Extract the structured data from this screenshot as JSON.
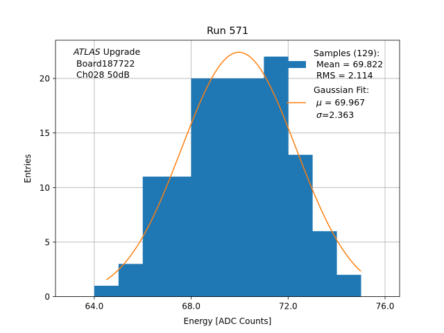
{
  "chart_data": {
    "type": "bar",
    "title": "Run 571",
    "xlabel": "Energy [ADC Counts]",
    "ylabel": "Entries",
    "xlim": [
      62.4,
      76.6
    ],
    "ylim": [
      0,
      23.5
    ],
    "grid": true,
    "x_ticks": [
      {
        "value": 64,
        "label": "64.0"
      },
      {
        "value": 68,
        "label": "68.0"
      },
      {
        "value": 72,
        "label": "72.0"
      },
      {
        "value": 76,
        "label": "76.0"
      }
    ],
    "y_ticks": [
      {
        "value": 0,
        "label": "0"
      },
      {
        "value": 5,
        "label": "5"
      },
      {
        "value": 10,
        "label": "10"
      },
      {
        "value": 15,
        "label": "15"
      },
      {
        "value": 20,
        "label": "20"
      }
    ],
    "histogram": {
      "color": "#1f77b4",
      "bin_edges": [
        64,
        65,
        66,
        67,
        68,
        69,
        70,
        71,
        72,
        73,
        74,
        75
      ],
      "counts": [
        1,
        3,
        11,
        11,
        20,
        20,
        20,
        22,
        13,
        6,
        2
      ]
    },
    "fit": {
      "color": "#ff7f0e",
      "mu": 69.967,
      "sigma": 2.363,
      "amplitude": 22.4,
      "x_range": [
        64.5,
        75.0
      ]
    },
    "annotation": {
      "italic": "ATLAS",
      "rest": " Upgrade",
      "line2": "Board187722",
      "line3": "Ch028 50dB"
    },
    "legend": {
      "position": "top-right",
      "samples_title": "Samples (129):",
      "samples_mean": "Mean = 69.822",
      "samples_rms": "RMS = 2.114",
      "fit_title": "Gaussian Fit:",
      "fit_mu_symbol": "μ",
      "fit_mu_value": " = 69.967",
      "fit_sigma_symbol": "σ",
      "fit_sigma_value": "=2.363"
    }
  }
}
